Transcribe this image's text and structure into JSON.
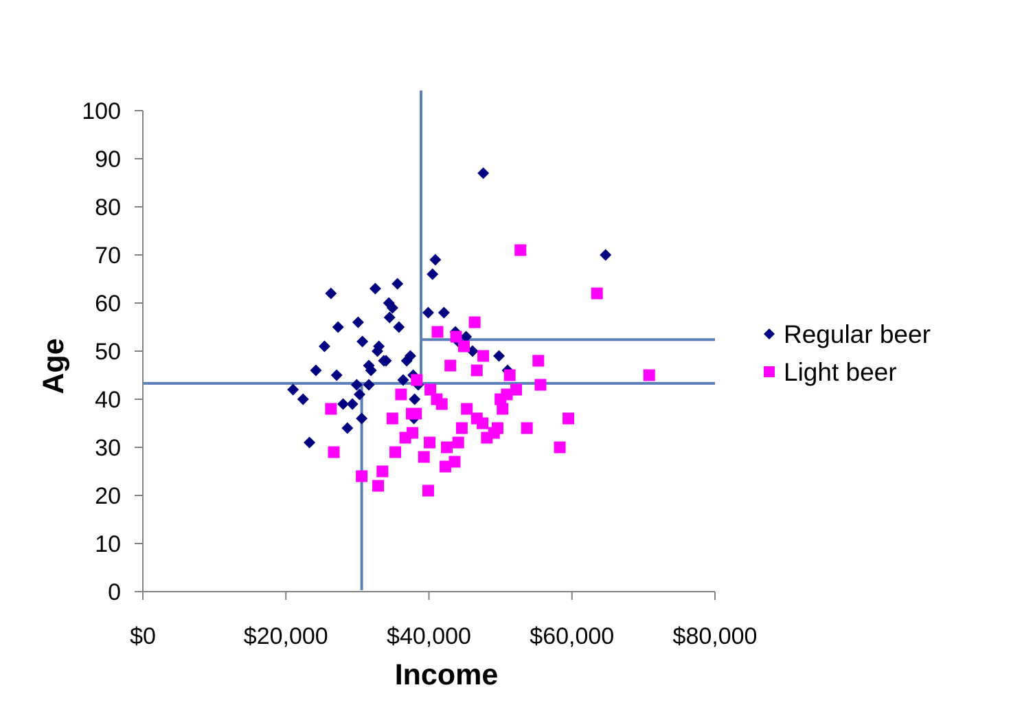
{
  "chart_data": {
    "type": "scatter",
    "title": "",
    "xlabel": "Income",
    "ylabel": "Age",
    "xlim": [
      0,
      80000
    ],
    "ylim": [
      0,
      100
    ],
    "x_ticks": [
      0,
      20000,
      40000,
      60000,
      80000
    ],
    "x_tick_labels": [
      "$0",
      "$20,000",
      "$40,000",
      "$60,000",
      "$80,000"
    ],
    "y_ticks": [
      0,
      10,
      20,
      30,
      40,
      50,
      60,
      70,
      80,
      90,
      100
    ],
    "y_tick_labels": [
      "0",
      "10",
      "20",
      "30",
      "40",
      "50",
      "60",
      "70",
      "80",
      "90",
      "100"
    ],
    "grid": false,
    "legend_position": "right",
    "series": [
      {
        "name": "Regular beer",
        "marker": "diamond",
        "color": "#000080",
        "points": [
          [
            47600,
            87
          ],
          [
            64700,
            70
          ],
          [
            40900,
            69
          ],
          [
            40500,
            66
          ],
          [
            35600,
            64
          ],
          [
            32500,
            63
          ],
          [
            26300,
            62
          ],
          [
            34400,
            60
          ],
          [
            34900,
            59
          ],
          [
            39900,
            58
          ],
          [
            42100,
            58
          ],
          [
            34500,
            57
          ],
          [
            30100,
            56
          ],
          [
            27300,
            55
          ],
          [
            35800,
            55
          ],
          [
            43700,
            54
          ],
          [
            45200,
            53
          ],
          [
            30700,
            52
          ],
          [
            44100,
            52
          ],
          [
            25400,
            51
          ],
          [
            33000,
            51
          ],
          [
            32800,
            50
          ],
          [
            46100,
            50
          ],
          [
            37400,
            49
          ],
          [
            49800,
            49
          ],
          [
            33700,
            48
          ],
          [
            34000,
            48
          ],
          [
            36900,
            48
          ],
          [
            31600,
            47
          ],
          [
            24200,
            46
          ],
          [
            31900,
            46
          ],
          [
            51000,
            46
          ],
          [
            27100,
            45
          ],
          [
            37800,
            45
          ],
          [
            36400,
            44
          ],
          [
            29900,
            43
          ],
          [
            31600,
            43
          ],
          [
            38500,
            43
          ],
          [
            21000,
            42
          ],
          [
            30300,
            41
          ],
          [
            22400,
            40
          ],
          [
            38000,
            40
          ],
          [
            28000,
            39
          ],
          [
            29300,
            39
          ],
          [
            30600,
            36
          ],
          [
            37900,
            36
          ],
          [
            28600,
            34
          ],
          [
            23300,
            31
          ]
        ]
      },
      {
        "name": "Light beer",
        "marker": "square",
        "color": "#ff00ff",
        "points": [
          [
            52800,
            71
          ],
          [
            63500,
            62
          ],
          [
            46400,
            56
          ],
          [
            41200,
            54
          ],
          [
            43800,
            53
          ],
          [
            44900,
            51
          ],
          [
            47600,
            49
          ],
          [
            55300,
            48
          ],
          [
            43000,
            47
          ],
          [
            46700,
            46
          ],
          [
            51300,
            45
          ],
          [
            70800,
            45
          ],
          [
            38300,
            44
          ],
          [
            55600,
            43
          ],
          [
            40200,
            42
          ],
          [
            52200,
            42
          ],
          [
            36100,
            41
          ],
          [
            50900,
            41
          ],
          [
            41100,
            40
          ],
          [
            50000,
            40
          ],
          [
            41800,
            39
          ],
          [
            45300,
            38
          ],
          [
            50300,
            38
          ],
          [
            26300,
            38
          ],
          [
            37600,
            37
          ],
          [
            38200,
            37
          ],
          [
            34900,
            36
          ],
          [
            46700,
            36
          ],
          [
            47500,
            35
          ],
          [
            59500,
            36
          ],
          [
            44600,
            34
          ],
          [
            49600,
            34
          ],
          [
            53700,
            34
          ],
          [
            37700,
            33
          ],
          [
            49100,
            33
          ],
          [
            36700,
            32
          ],
          [
            48100,
            32
          ],
          [
            40100,
            31
          ],
          [
            44100,
            31
          ],
          [
            26700,
            29
          ],
          [
            35300,
            29
          ],
          [
            42500,
            30
          ],
          [
            58300,
            30
          ],
          [
            39300,
            28
          ],
          [
            42300,
            26
          ],
          [
            43600,
            27
          ],
          [
            33500,
            25
          ],
          [
            30600,
            24
          ],
          [
            32900,
            22
          ],
          [
            39900,
            21
          ]
        ]
      }
    ],
    "reference_lines": [
      {
        "orientation": "horizontal",
        "y": 43.3,
        "x_from": 0,
        "x_to": 80000
      },
      {
        "orientation": "vertical",
        "x": 30600,
        "y_from": 0.3,
        "y_to": 43.3
      },
      {
        "orientation": "vertical",
        "x": 38900,
        "y_from": 43.3,
        "y_to": 104.2
      },
      {
        "orientation": "horizontal",
        "y": 52.4,
        "x_from": 38900,
        "x_to": 80000
      }
    ],
    "reference_line_color": "#5b7fb8"
  }
}
